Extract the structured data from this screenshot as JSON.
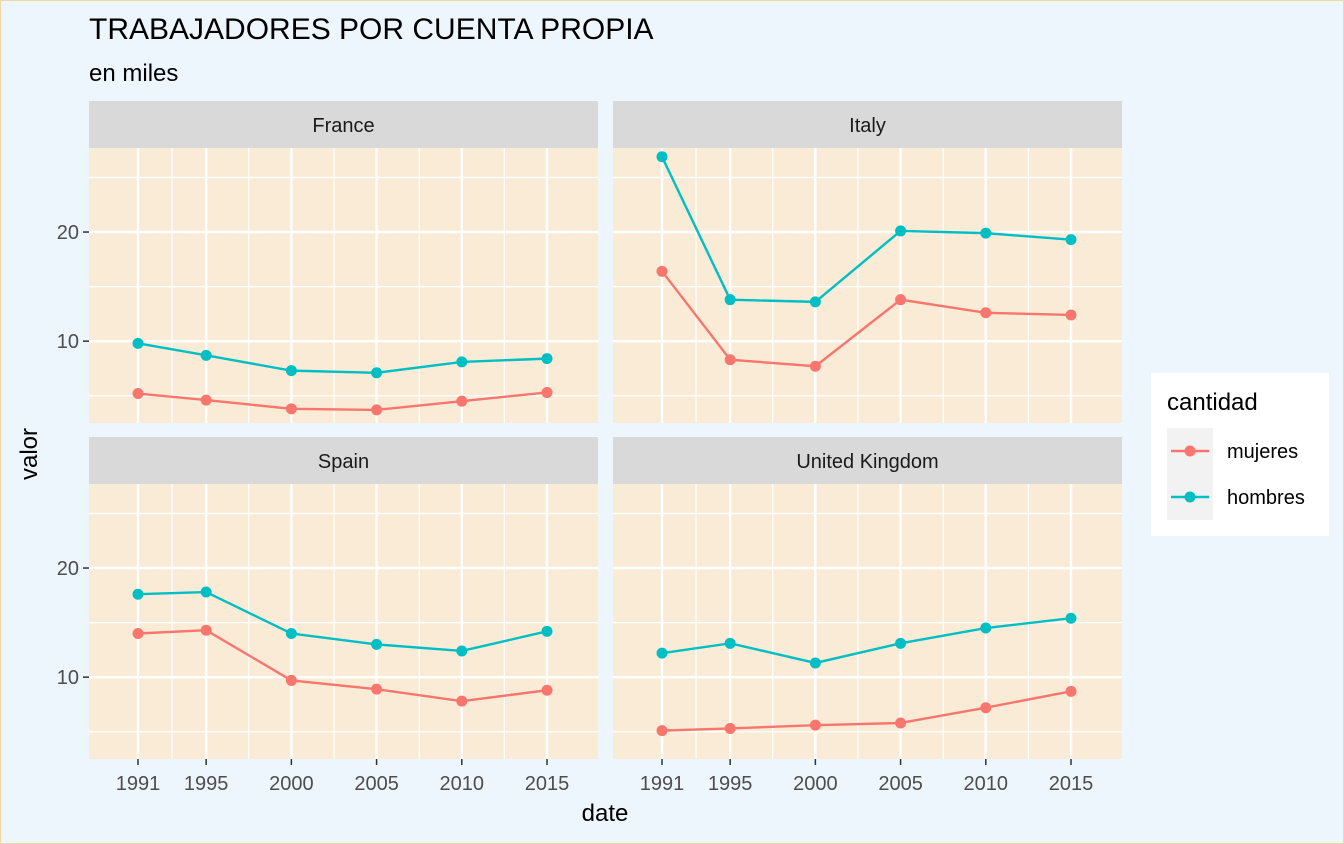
{
  "chart_data": {
    "type": "line",
    "title": "TRABAJADORES POR CUENTA PROPIA",
    "subtitle": "en miles",
    "xlabel": "date",
    "ylabel": "valor",
    "x": [
      1991,
      1995,
      2000,
      2005,
      2010,
      2015
    ],
    "x_tick_labels": [
      "1991",
      "1995",
      "2000",
      "2005",
      "2010",
      "2015"
    ],
    "y_ticks": [
      10,
      20
    ],
    "y_tick_labels": [
      "10",
      "20"
    ],
    "ylim": [
      2.5,
      27.7
    ],
    "grid": true,
    "legend": {
      "title": "cantidad",
      "placement": "right",
      "entries": [
        {
          "name": "mujeres",
          "color": "#f8766d"
        },
        {
          "name": "hombres",
          "color": "#00bfc4"
        }
      ]
    },
    "panel_bg_color": "#faebd7",
    "strip_bg_color": "#d9d9d9",
    "panels": [
      {
        "name": "France",
        "series": [
          {
            "name": "mujeres",
            "color": "#f8766d",
            "values": [
              5.2,
              4.6,
              3.8,
              3.7,
              4.5,
              5.3
            ]
          },
          {
            "name": "hombres",
            "color": "#00bfc4",
            "values": [
              9.8,
              8.7,
              7.3,
              7.1,
              8.1,
              8.4
            ]
          }
        ]
      },
      {
        "name": "Italy",
        "series": [
          {
            "name": "mujeres",
            "color": "#f8766d",
            "values": [
              16.4,
              8.3,
              7.7,
              13.8,
              12.6,
              12.4
            ]
          },
          {
            "name": "hombres",
            "color": "#00bfc4",
            "values": [
              26.9,
              13.8,
              13.6,
              20.1,
              19.9,
              19.3
            ]
          }
        ]
      },
      {
        "name": "Spain",
        "series": [
          {
            "name": "mujeres",
            "color": "#f8766d",
            "values": [
              14.0,
              14.3,
              9.7,
              8.9,
              7.8,
              8.8
            ]
          },
          {
            "name": "hombres",
            "color": "#00bfc4",
            "values": [
              17.6,
              17.8,
              14.0,
              13.0,
              12.4,
              14.2
            ]
          }
        ]
      },
      {
        "name": "United Kingdom",
        "series": [
          {
            "name": "mujeres",
            "color": "#f8766d",
            "values": [
              5.1,
              5.3,
              5.6,
              5.8,
              7.2,
              8.7
            ]
          },
          {
            "name": "hombres",
            "color": "#00bfc4",
            "values": [
              12.2,
              13.1,
              11.3,
              13.1,
              14.5,
              15.4
            ]
          }
        ]
      }
    ]
  }
}
